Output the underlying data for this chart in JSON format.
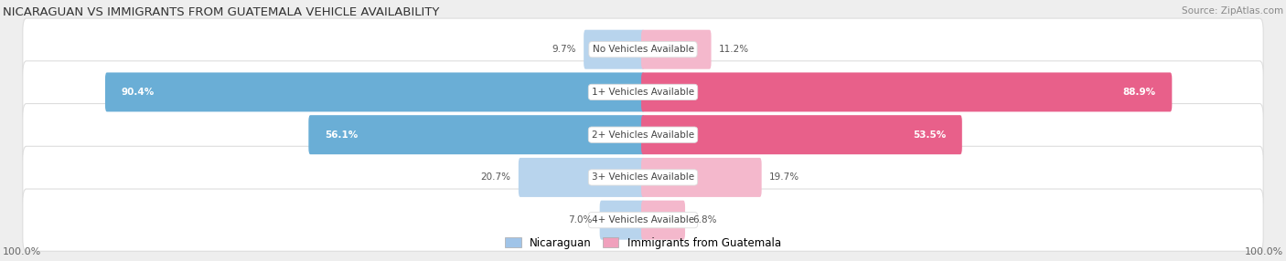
{
  "title": "NICARAGUAN VS IMMIGRANTS FROM GUATEMALA VEHICLE AVAILABILITY",
  "source": "Source: ZipAtlas.com",
  "categories": [
    "No Vehicles Available",
    "1+ Vehicles Available",
    "2+ Vehicles Available",
    "3+ Vehicles Available",
    "4+ Vehicles Available"
  ],
  "nicaraguan_values": [
    9.7,
    90.4,
    56.1,
    20.7,
    7.0
  ],
  "guatemala_values": [
    11.2,
    88.9,
    53.5,
    19.7,
    6.8
  ],
  "max_value": 100.0,
  "blue_light": "#b8d4ed",
  "blue_dark": "#6aaed6",
  "pink_light": "#f4b8cc",
  "pink_dark": "#e8608a",
  "bg_color": "#eeeeee",
  "row_bg_color": "#f5f5f5",
  "row_edge_color": "#dddddd",
  "title_color": "#333333",
  "source_color": "#888888",
  "label_inside_color": "#ffffff",
  "label_outside_color": "#555555",
  "center_label_color": "#444444",
  "axis_label_color": "#666666",
  "legend_blue": "#a0c4e8",
  "legend_pink": "#f0a0bc",
  "axis_label_left": "100.0%",
  "axis_label_right": "100.0%",
  "inside_threshold": 12.0
}
